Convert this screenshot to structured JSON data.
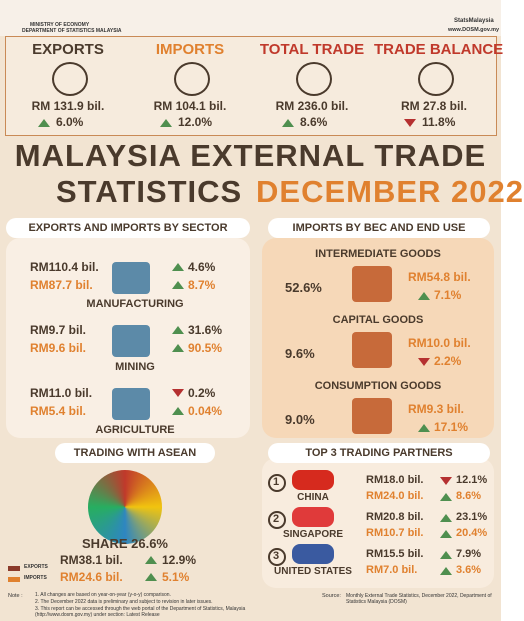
{
  "header": {
    "ministry": "MINISTRY OF ECONOMY",
    "department": "DEPARTMENT OF STATISTICS MALAYSIA",
    "social": "StatsMalaysia",
    "website": "www.DOSM.gov.my"
  },
  "kpis": [
    {
      "label": "EXPORTS",
      "value": "RM 131.9 bil.",
      "change": "6.0%",
      "dir": "up"
    },
    {
      "label": "IMPORTS",
      "value": "RM 104.1 bil.",
      "change": "12.0%",
      "dir": "up"
    },
    {
      "label": "TOTAL TRADE",
      "value": "RM 236.0 bil.",
      "change": "8.6%",
      "dir": "up"
    },
    {
      "label": "TRADE BALANCE",
      "value": "RM 27.8 bil.",
      "change": "11.8%",
      "dir": "down"
    }
  ],
  "title": {
    "line1": "MALAYSIA EXTERNAL TRADE",
    "line2": "STATISTICS",
    "period": "DECEMBER 2022"
  },
  "sectors": {
    "title": "EXPORTS AND IMPORTS BY SECTOR",
    "items": [
      {
        "name": "MANUFACTURING",
        "exports": "RM110.4 bil.",
        "exports_change": "4.6%",
        "exports_dir": "up",
        "imports": "RM87.7 bil.",
        "imports_change": "8.7%",
        "imports_dir": "up"
      },
      {
        "name": "MINING",
        "exports": "RM9.7 bil.",
        "exports_change": "31.6%",
        "exports_dir": "up",
        "imports": "RM9.6 bil.",
        "imports_change": "90.5%",
        "imports_dir": "up"
      },
      {
        "name": "AGRICULTURE",
        "exports": "RM11.0 bil.",
        "exports_change": "0.2%",
        "exports_dir": "down",
        "imports": "RM5.4 bil.",
        "imports_change": "0.04%",
        "imports_dir": "up"
      }
    ]
  },
  "bec": {
    "title": "IMPORTS BY BEC AND END USE",
    "items": [
      {
        "name": "INTERMEDIATE GOODS",
        "share": "52.6%",
        "value": "RM54.8 bil.",
        "change": "7.1%",
        "dir": "up"
      },
      {
        "name": "CAPITAL GOODS",
        "share": "9.6%",
        "value": "RM10.0 bil.",
        "change": "2.2%",
        "dir": "down"
      },
      {
        "name": "CONSUMPTION GOODS",
        "share": "9.0%",
        "value": "RM9.3 bil.",
        "change": "17.1%",
        "dir": "up"
      }
    ]
  },
  "asean": {
    "title": "TRADING WITH ASEAN",
    "share": "SHARE 26.6%",
    "legend_exports": "EXPORTS",
    "legend_imports": "IMPORTS",
    "exports": "RM38.1 bil.",
    "exports_change": "12.9%",
    "exports_dir": "up",
    "imports": "RM24.6 bil.",
    "imports_change": "5.1%",
    "imports_dir": "up"
  },
  "partners": {
    "title": "TOP 3 TRADING PARTNERS",
    "items": [
      {
        "rank": "1",
        "name": "CHINA",
        "exports": "RM18.0 bil.",
        "exports_change": "12.1%",
        "exports_dir": "down",
        "imports": "RM24.0 bil.",
        "imports_change": "8.6%",
        "imports_dir": "up"
      },
      {
        "rank": "2",
        "name": "SINGAPORE",
        "exports": "RM20.8 bil.",
        "exports_change": "23.1%",
        "exports_dir": "up",
        "imports": "RM10.7 bil.",
        "imports_change": "20.4%",
        "imports_dir": "up"
      },
      {
        "rank": "3",
        "name": "UNITED STATES",
        "exports": "RM15.5 bil.",
        "exports_change": "7.9%",
        "exports_dir": "up",
        "imports": "RM7.0 bil.",
        "imports_change": "3.6%",
        "imports_dir": "up"
      }
    ]
  },
  "footer": {
    "note_label": "Note :",
    "notes": [
      "1.      All changes are based on year-on-year (y-o-y) comparison.",
      "2. The December 2022 data is preliminary and subject to revision in later issues.",
      "3. This report can be accessed through the web portal of the Department of Statistics, Malaysia (http://www.dosm.gov.my) under section: Latest Release"
    ],
    "source_label": "Source:",
    "source": "Monthly External Trade Statistics, December 2022, Department of Statistics Malaysia (DOSM)"
  }
}
